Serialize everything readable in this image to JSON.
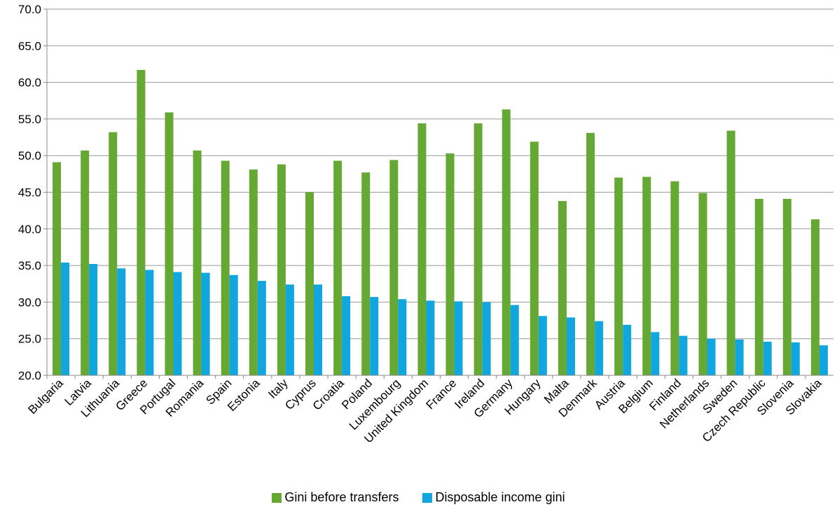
{
  "chart_data": {
    "type": "bar",
    "title": "",
    "xlabel": "",
    "ylabel": "",
    "ylim": [
      20,
      70
    ],
    "yticks": [
      "20.0",
      "25.0",
      "30.0",
      "35.0",
      "40.0",
      "45.0",
      "50.0",
      "55.0",
      "60.0",
      "65.0",
      "70.0"
    ],
    "grid": true,
    "legend_position": "bottom",
    "categories": [
      "Bulgaria",
      "Latvia",
      "Lithuania",
      "Greece",
      "Portugal",
      "Romania",
      "Spain",
      "Estonia",
      "Italy",
      "Cyprus",
      "Croatia",
      "Poland",
      "Luxembourg",
      "United Kingdom",
      "France",
      "Ireland",
      "Germany",
      "Hungary",
      "Malta",
      "Denmark",
      "Austria",
      "Belgium",
      "Finland",
      "Netherlands",
      "Sweden",
      "Czech Republic",
      "Slovenia",
      "Slovakia"
    ],
    "series": [
      {
        "name": "Gini before transfers",
        "color": "#66A834",
        "values": [
          49.1,
          50.7,
          53.2,
          61.7,
          55.9,
          50.7,
          49.3,
          48.1,
          48.8,
          45.0,
          49.3,
          47.7,
          49.4,
          54.4,
          50.3,
          54.4,
          56.3,
          51.9,
          43.8,
          53.1,
          47.0,
          47.1,
          46.5,
          44.9,
          53.4,
          44.1,
          44.1,
          41.3
        ]
      },
      {
        "name": "Disposable income gini",
        "color": "#11A6DE",
        "values": [
          35.4,
          35.2,
          34.6,
          34.4,
          34.1,
          34.0,
          33.7,
          32.9,
          32.4,
          32.4,
          30.8,
          30.7,
          30.4,
          30.2,
          30.1,
          30.0,
          29.6,
          28.1,
          27.9,
          27.4,
          26.9,
          25.9,
          25.4,
          25.0,
          24.9,
          24.6,
          24.5,
          24.1
        ]
      }
    ]
  }
}
